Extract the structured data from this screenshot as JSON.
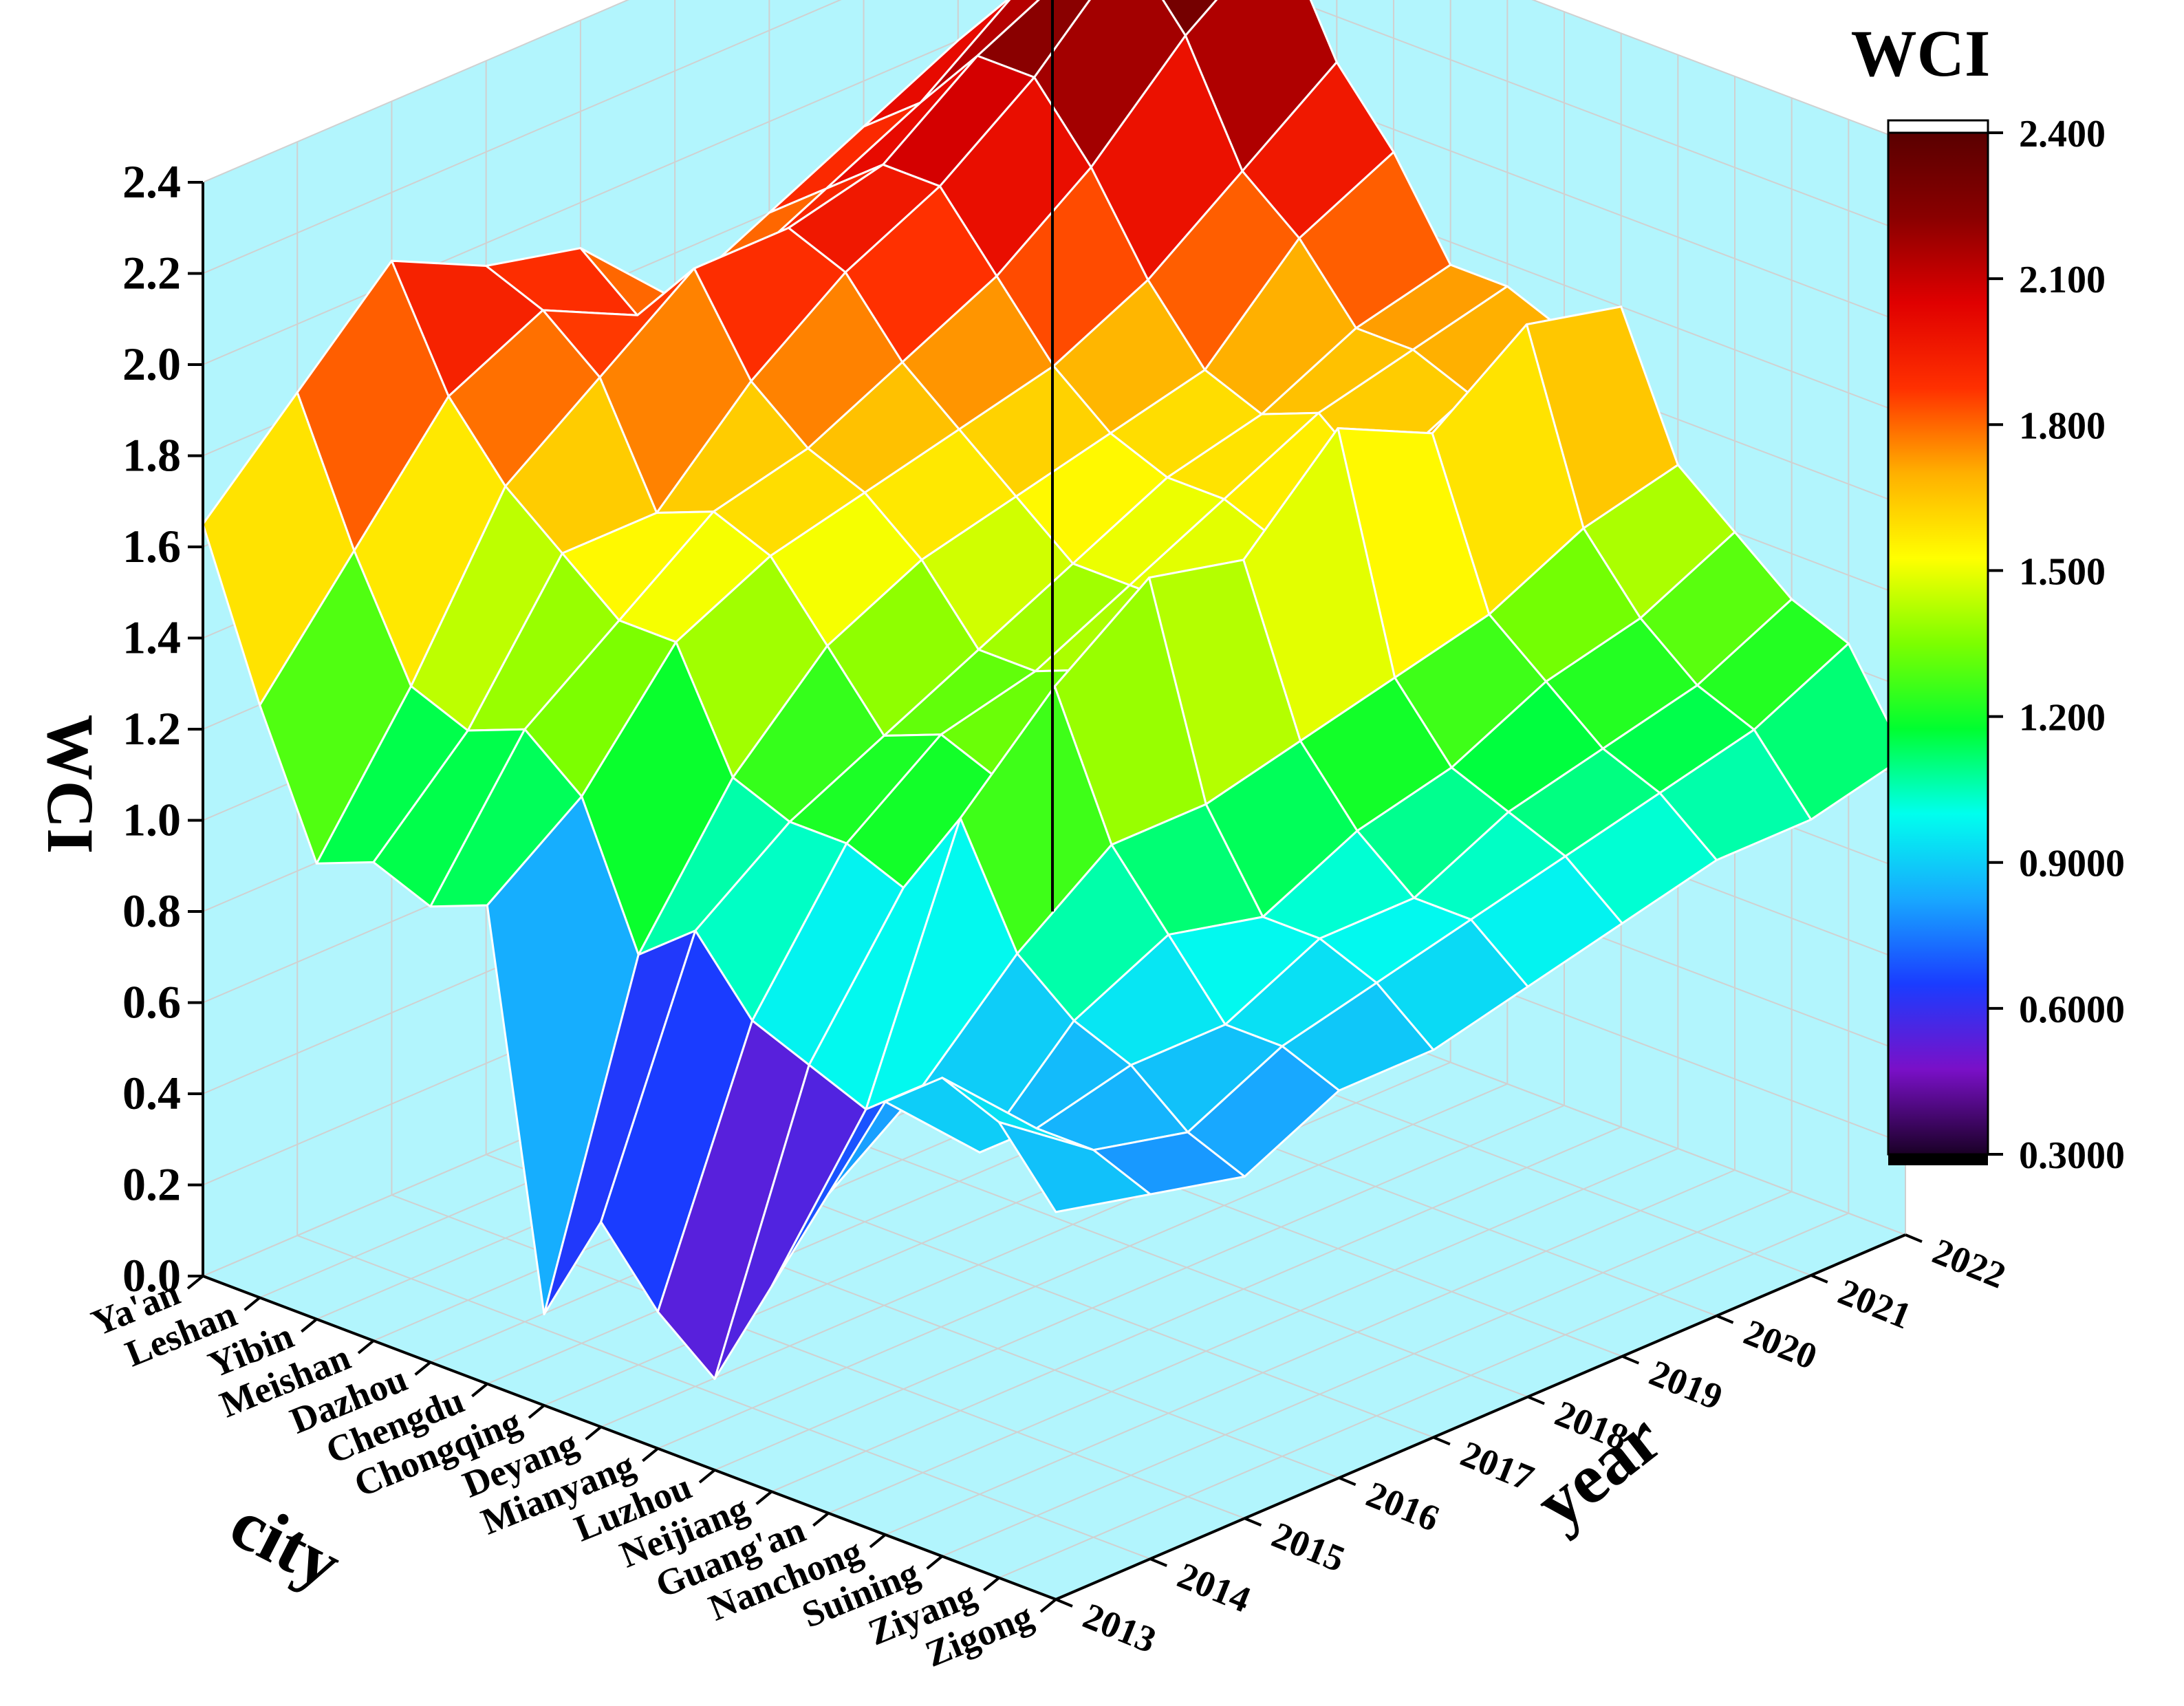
{
  "chart_data": {
    "type": "surface3d",
    "title": "",
    "zlabel": "WCI",
    "xlabel": "city",
    "ylabel": "year",
    "zlim": [
      0,
      2.4
    ],
    "z_ticks": [
      "0.0",
      "0.2",
      "0.4",
      "0.6",
      "0.8",
      "1.0",
      "1.2",
      "1.4",
      "1.6",
      "1.8",
      "2.0",
      "2.2",
      "2.4"
    ],
    "cities": [
      "Ya'an",
      "Leshan",
      "Yibin",
      "Meishan",
      "Dazhou",
      "Chengdu",
      "Chongqing",
      "Deyang",
      "Mianyang",
      "Luzhou",
      "Neijiang",
      "Guang'an",
      "Nanchong",
      "Suining",
      "Ziyang",
      "Zigong"
    ],
    "years": [
      "2013",
      "2014",
      "2015",
      "2016",
      "2017",
      "2018",
      "2019",
      "2020",
      "2021",
      "2022"
    ],
    "values_by_year": [
      [
        1.65,
        1.3,
        1.0,
        1.05,
        1.0,
        1.05,
        0.2,
        0.45,
        0.3,
        0.2,
        0.45,
        0.7,
        0.95,
        1.05,
        1.0,
        0.85
      ],
      [
        1.85,
        1.55,
        1.3,
        1.25,
        1.3,
        1.2,
        0.9,
        1.0,
        0.85,
        0.8,
        0.75,
        0.85,
        0.75,
        0.85,
        0.85,
        0.8
      ],
      [
        2.05,
        1.8,
        1.65,
        1.55,
        1.45,
        1.45,
        1.2,
        1.15,
        1.15,
        1.1,
        1.3,
        1.05,
        0.95,
        0.9,
        0.8,
        0.75
      ],
      [
        1.95,
        1.9,
        1.8,
        1.55,
        1.6,
        1.55,
        1.4,
        1.25,
        1.3,
        1.25,
        1.5,
        1.2,
        1.05,
        0.9,
        0.9,
        0.85
      ],
      [
        1.9,
        1.8,
        1.95,
        1.75,
        1.65,
        1.6,
        1.5,
        1.35,
        1.35,
        1.4,
        1.65,
        1.2,
        1.0,
        1.0,
        0.95,
        0.85
      ],
      [
        1.7,
        1.8,
        1.95,
        1.9,
        1.75,
        1.65,
        1.55,
        1.45,
        1.45,
        1.45,
        1.6,
        1.25,
        1.1,
        1.0,
        1.0,
        0.9
      ],
      [
        1.8,
        1.9,
        2.0,
        2.0,
        1.85,
        1.7,
        1.6,
        1.55,
        1.55,
        1.5,
        1.8,
        1.3,
        1.15,
        1.1,
        1.05,
        0.95
      ],
      [
        1.9,
        2.0,
        2.15,
        2.15,
        2.0,
        1.8,
        1.65,
        1.6,
        1.65,
        1.55,
        1.7,
        1.35,
        1.25,
        1.15,
        1.1,
        1.0
      ],
      [
        2.0,
        2.15,
        2.25,
        2.35,
        2.2,
        1.95,
        1.85,
        1.7,
        1.7,
        1.65,
        1.85,
        1.45,
        1.3,
        1.2,
        1.15,
        1.0
      ],
      [
        1.95,
        2.1,
        2.4,
        2.3,
        2.35,
        2.1,
        1.95,
        1.75,
        1.75,
        1.7,
        1.8,
        1.5,
        1.4,
        1.3,
        1.25,
        1.05
      ]
    ],
    "colorbar": {
      "title": "WCI",
      "range": [
        0.3,
        2.4
      ],
      "tick_labels": [
        "0.3000",
        "0.6000",
        "0.9000",
        "1.200",
        "1.500",
        "1.800",
        "2.100",
        "2.400"
      ],
      "tick_values": [
        0.3,
        0.6,
        0.9,
        1.2,
        1.5,
        1.8,
        2.1,
        2.4
      ],
      "color_stops": [
        "#1a0026",
        "#7a10c8",
        "#1a3cff",
        "#18a8ff",
        "#00ffee",
        "#00ff30",
        "#7cff00",
        "#ffff00",
        "#ffb000",
        "#ff3000",
        "#e00000",
        "#8a0000",
        "#5a0000"
      ]
    },
    "colors": {
      "walls": "#b2f5fd",
      "grid": "#d0d0d0",
      "mesh": "#ffffff"
    }
  }
}
